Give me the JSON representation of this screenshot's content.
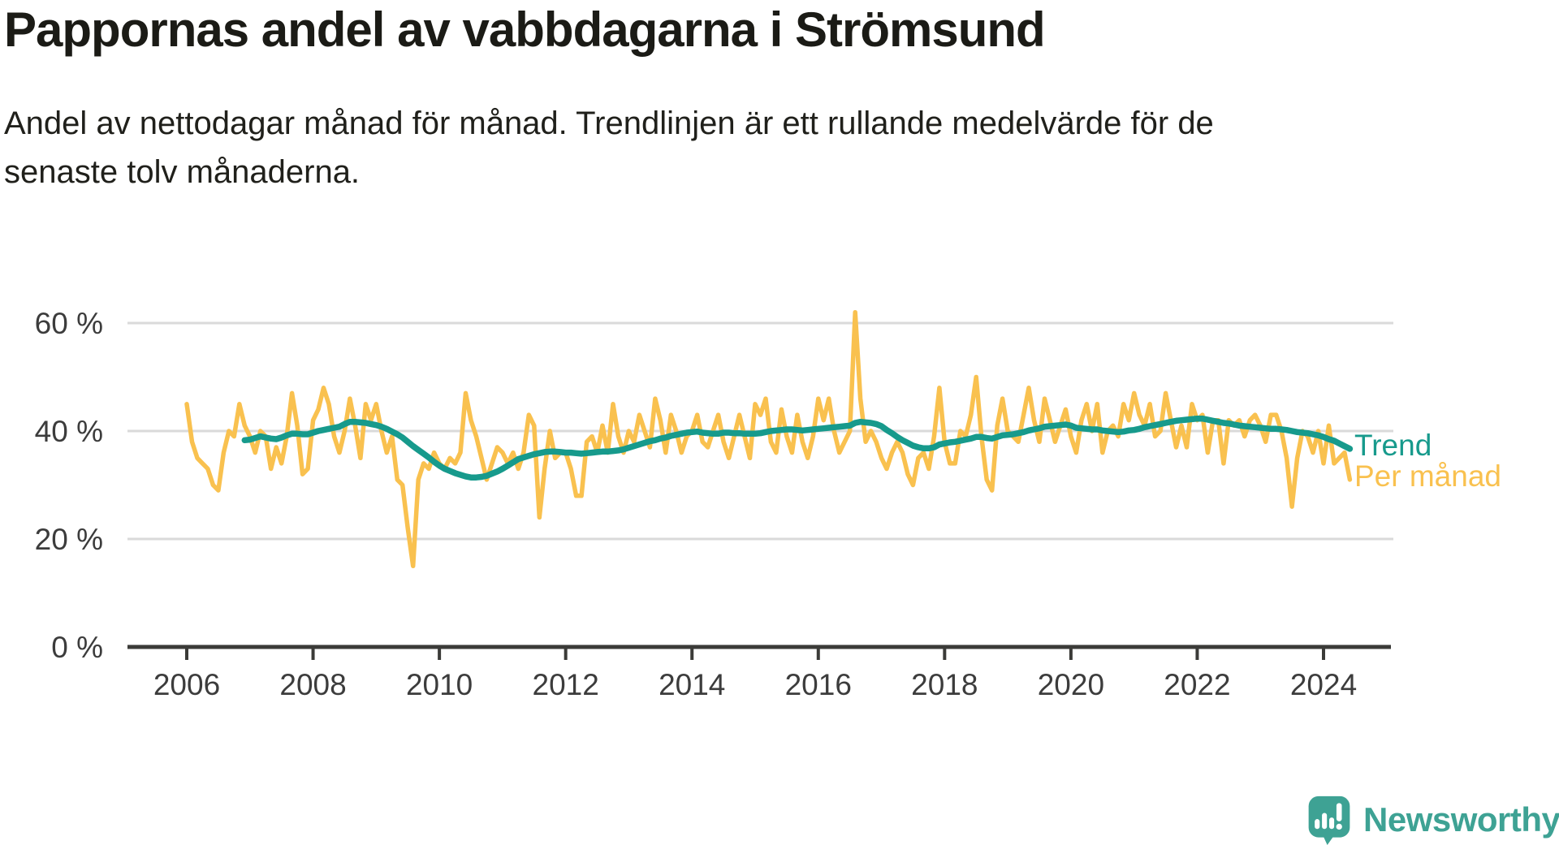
{
  "page": {
    "title": "Pappornas andel av vabbdagarna i Strömsund",
    "subtitle": "Andel av nettodagar månad för månad. Trendlinjen är ett rullande medelvärde för de senaste tolv månaderna."
  },
  "legend": {
    "trend_label": "Trend",
    "monthly_label": "Per månad"
  },
  "branding": {
    "logo_text": "Newsworthy",
    "logo_icon": "newsworthy-speech-bubble-bar-chart-icon"
  },
  "colors": {
    "monthly_line": "#F9C14F",
    "trend_line": "#179A8C",
    "grid": "#DADADA",
    "axis": "#3B3B38",
    "tick_label": "#3C3C3C",
    "logo": "#3EA294",
    "title_text": "#1B1B16"
  },
  "chart_data": {
    "type": "line",
    "title": "Pappornas andel av vabbdagarna i Strömsund",
    "subtitle": "Andel av nettodagar månad för månad. Trendlinjen är ett rullande medelvärde för de senaste tolv månaderna.",
    "x_start": "2006-01",
    "x_end": "2024-06",
    "x_unit": "month",
    "x_tick_labels": [
      "2006",
      "2008",
      "2010",
      "2012",
      "2014",
      "2016",
      "2018",
      "2020",
      "2022",
      "2024"
    ],
    "y_ticks": [
      0,
      20,
      40,
      60
    ],
    "y_tick_labels": [
      "0 %",
      "20 %",
      "40 %",
      "60 %"
    ],
    "ylim": [
      0,
      65
    ],
    "grid": "horizontal-only",
    "legend_position": "right-of-line-ends",
    "series": [
      {
        "name": "Per månad",
        "color": "#F9C14F",
        "width": 5.5,
        "values": [
          45,
          38,
          35,
          34,
          33,
          30,
          29,
          36,
          40,
          39,
          45,
          41,
          39,
          36,
          40,
          39,
          33,
          37,
          34,
          39,
          47,
          41,
          32,
          33,
          42,
          44,
          48,
          45,
          39,
          36,
          40,
          46,
          41,
          35,
          45,
          42,
          45,
          40,
          36,
          39,
          31,
          30,
          22,
          15,
          31,
          34,
          33,
          36,
          34,
          33,
          35,
          34,
          36,
          47,
          42,
          39,
          35,
          31,
          34,
          37,
          36,
          34,
          36,
          33,
          36,
          43,
          41,
          24,
          33,
          40,
          35,
          36,
          36,
          33,
          28,
          28,
          38,
          39,
          36,
          41,
          36,
          45,
          39,
          36,
          40,
          38,
          43,
          40,
          37,
          46,
          42,
          36,
          43,
          40,
          36,
          39,
          40,
          43,
          38,
          37,
          40,
          43,
          38,
          35,
          39,
          43,
          39,
          35,
          45,
          43,
          46,
          38,
          36,
          44,
          39,
          36,
          43,
          38,
          35,
          39,
          46,
          42,
          46,
          40,
          36,
          38,
          40,
          62,
          46,
          38,
          40,
          38,
          35,
          33,
          36,
          38,
          36,
          32,
          30,
          35,
          36,
          33,
          39,
          48,
          38,
          34,
          34,
          40,
          39,
          43,
          50,
          39,
          31,
          29,
          41,
          46,
          40,
          39,
          38,
          43,
          48,
          42,
          38,
          46,
          42,
          38,
          41,
          44,
          39,
          36,
          42,
          45,
          40,
          45,
          36,
          40,
          41,
          39,
          45,
          42,
          47,
          43,
          41,
          45,
          39,
          40,
          47,
          42,
          37,
          41,
          37,
          45,
          42,
          43,
          36,
          42,
          42,
          34,
          42,
          41,
          42,
          39,
          42,
          43,
          41,
          38,
          43,
          43,
          40,
          35,
          26,
          35,
          40,
          39,
          36,
          40,
          34,
          41,
          34,
          35,
          36,
          31
        ]
      },
      {
        "name": "Trend",
        "color": "#179A8C",
        "width": 7.5,
        "values": [
          null,
          null,
          null,
          null,
          null,
          null,
          null,
          null,
          null,
          null,
          null,
          38.3,
          38.4,
          38.7,
          39.0,
          38.8,
          38.6,
          38.5,
          38.8,
          39.2,
          39.5,
          39.5,
          39.4,
          39.4,
          39.7,
          40.0,
          40.2,
          40.4,
          40.6,
          40.8,
          41.3,
          41.7,
          41.7,
          41.6,
          41.5,
          41.3,
          41.1,
          40.8,
          40.4,
          39.9,
          39.4,
          38.8,
          38.0,
          37.2,
          36.5,
          35.8,
          35.1,
          34.3,
          33.6,
          33.0,
          32.6,
          32.2,
          31.9,
          31.6,
          31.4,
          31.4,
          31.5,
          31.7,
          32.1,
          32.5,
          33.0,
          33.6,
          34.2,
          34.8,
          35.1,
          35.4,
          35.7,
          35.9,
          36.1,
          36.2,
          36.2,
          36.1,
          36.0,
          36.0,
          35.9,
          35.8,
          35.9,
          36.0,
          36.1,
          36.2,
          36.2,
          36.3,
          36.4,
          36.6,
          36.9,
          37.2,
          37.5,
          37.8,
          38.1,
          38.3,
          38.6,
          38.8,
          39.1,
          39.3,
          39.5,
          39.7,
          39.8,
          39.9,
          39.7,
          39.6,
          39.5,
          39.5,
          39.7,
          39.7,
          39.6,
          39.6,
          39.5,
          39.5,
          39.5,
          39.6,
          39.8,
          40.0,
          40.1,
          40.2,
          40.3,
          40.3,
          40.2,
          40.1,
          40.2,
          40.3,
          40.4,
          40.5,
          40.6,
          40.7,
          40.8,
          40.9,
          41.0,
          41.5,
          41.7,
          41.6,
          41.5,
          41.3,
          40.9,
          40.2,
          39.6,
          38.9,
          38.3,
          37.8,
          37.3,
          37.0,
          36.8,
          36.8,
          37.0,
          37.5,
          37.7,
          37.9,
          38.0,
          38.2,
          38.4,
          38.6,
          38.9,
          38.9,
          38.7,
          38.6,
          38.9,
          39.2,
          39.3,
          39.4,
          39.6,
          39.8,
          40.1,
          40.3,
          40.5,
          40.8,
          40.9,
          41.0,
          41.1,
          41.2,
          41.0,
          40.6,
          40.5,
          40.4,
          40.3,
          40.3,
          40.1,
          40.0,
          39.9,
          39.8,
          39.9,
          40.1,
          40.2,
          40.4,
          40.7,
          40.9,
          41.1,
          41.3,
          41.5,
          41.7,
          41.9,
          42.0,
          42.1,
          42.2,
          42.3,
          42.3,
          42.1,
          41.9,
          41.7,
          41.5,
          41.4,
          41.2,
          41.0,
          40.9,
          40.8,
          40.7,
          40.6,
          40.5,
          40.4,
          40.4,
          40.3,
          40.2,
          40.0,
          39.8,
          39.7,
          39.6,
          39.4,
          39.2,
          38.9,
          38.5,
          38.2,
          37.7,
          37.2,
          36.7
        ]
      }
    ]
  }
}
